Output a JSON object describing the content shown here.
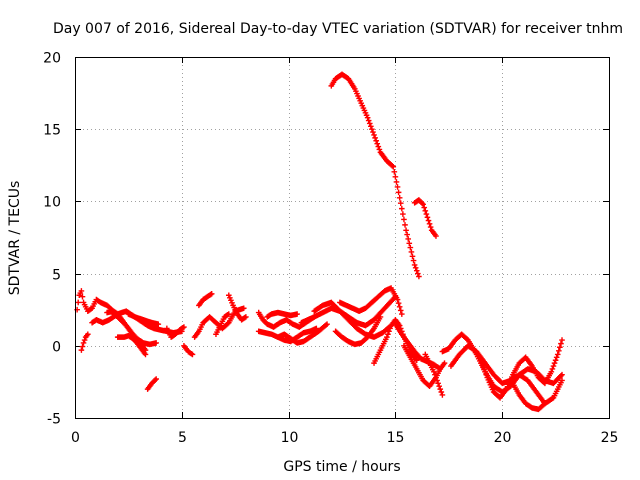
{
  "chart_data": {
    "type": "scatter",
    "title": "Day 007 of 2016, Sidereal Day-to-day VTEC variation (SDTVAR) for receiver tnhm",
    "xlabel": "GPS time / hours",
    "ylabel": "SDTVAR / TECUs",
    "xlim": [
      0,
      25
    ],
    "ylim": [
      -5,
      20
    ],
    "xticks": [
      0,
      5,
      10,
      15,
      20,
      25
    ],
    "yticks": [
      -5,
      0,
      5,
      10,
      15,
      20
    ],
    "grid": true,
    "marker": "+",
    "color": "#ff0000",
    "series": [
      {
        "name": "s1",
        "x": [
          0.1,
          0.2,
          0.3,
          0.4,
          0.6,
          0.8,
          1.0,
          1.2,
          1.5,
          1.8
        ],
        "y": [
          2.5,
          3.5,
          3.8,
          3.0,
          2.4,
          2.6,
          3.2,
          3.0,
          2.8,
          2.4
        ]
      },
      {
        "name": "s2",
        "x": [
          0.3,
          0.4,
          0.5,
          0.6
        ],
        "y": [
          -0.3,
          0.2,
          0.6,
          0.8
        ]
      },
      {
        "name": "s3",
        "x": [
          0.8,
          1.0,
          1.3,
          1.6,
          2.0,
          2.4,
          2.8,
          3.2,
          3.6,
          3.9
        ],
        "y": [
          1.6,
          1.8,
          1.6,
          1.8,
          2.2,
          2.4,
          2.0,
          1.8,
          1.6,
          1.5
        ]
      },
      {
        "name": "s4",
        "x": [
          1.5,
          1.8,
          2.0,
          2.3,
          2.6,
          2.9,
          3.2,
          3.5,
          3.8
        ],
        "y": [
          2.3,
          2.4,
          2.2,
          1.6,
          1.0,
          0.5,
          0.2,
          0.1,
          0.2
        ]
      },
      {
        "name": "s5",
        "x": [
          1.8,
          2.0,
          2.2,
          2.4,
          2.6,
          2.8,
          3.1,
          3.3
        ],
        "y": [
          2.2,
          2.0,
          1.7,
          1.4,
          1.0,
          0.6,
          0.1,
          -0.3
        ]
      },
      {
        "name": "s6",
        "x": [
          2.0,
          2.3,
          2.5,
          2.7,
          2.9,
          3.1,
          3.3
        ],
        "y": [
          0.6,
          0.6,
          0.7,
          0.5,
          0.2,
          -0.2,
          -0.6
        ]
      },
      {
        "name": "s7",
        "x": [
          2.5,
          2.8,
          3.1,
          3.4,
          3.7,
          4.0,
          4.3,
          4.6,
          5.0
        ],
        "y": [
          2.2,
          2.0,
          1.7,
          1.4,
          1.2,
          1.1,
          1.0,
          0.9,
          1.0
        ]
      },
      {
        "name": "s8",
        "x": [
          3.4,
          3.6,
          3.8
        ],
        "y": [
          -3.0,
          -2.6,
          -2.3
        ]
      },
      {
        "name": "s9",
        "x": [
          4.3,
          4.5,
          4.7,
          4.9,
          5.1
        ],
        "y": [
          1.2,
          0.6,
          0.8,
          1.1,
          1.3
        ]
      },
      {
        "name": "s10",
        "x": [
          5.1,
          5.3,
          5.5
        ],
        "y": [
          0.0,
          -0.4,
          -0.6
        ]
      },
      {
        "name": "s11",
        "x": [
          5.6,
          5.8,
          6.0,
          6.3,
          6.6,
          6.9,
          7.2,
          7.5,
          7.9
        ],
        "y": [
          0.6,
          1.0,
          1.6,
          2.0,
          1.6,
          1.2,
          1.6,
          2.4,
          2.6
        ]
      },
      {
        "name": "s12",
        "x": [
          5.8,
          6.0,
          6.2,
          6.4
        ],
        "y": [
          2.8,
          3.2,
          3.4,
          3.6
        ]
      },
      {
        "name": "s13",
        "x": [
          6.6,
          6.8,
          7.0,
          7.2
        ],
        "y": [
          0.8,
          1.4,
          2.0,
          2.2
        ]
      },
      {
        "name": "s14",
        "x": [
          7.2,
          7.4,
          7.6,
          7.8,
          8.0
        ],
        "y": [
          3.5,
          2.8,
          2.2,
          1.8,
          2.0
        ]
      },
      {
        "name": "s15",
        "x": [
          8.6,
          8.8,
          9.0,
          9.3,
          9.6,
          9.9,
          10.2,
          10.5,
          10.8,
          11.2
        ],
        "y": [
          2.3,
          1.8,
          1.5,
          1.3,
          1.6,
          1.8,
          1.5,
          1.3,
          1.6,
          2.0
        ]
      },
      {
        "name": "s16",
        "x": [
          8.6,
          8.9,
          9.2,
          9.5,
          9.8,
          10.1,
          10.4,
          10.7,
          11.0,
          11.3
        ],
        "y": [
          1.0,
          0.9,
          0.8,
          0.6,
          0.4,
          0.3,
          0.6,
          0.9,
          1.0,
          1.2
        ]
      },
      {
        "name": "s17",
        "x": [
          9.0,
          9.2,
          9.5,
          9.8,
          10.1,
          10.4
        ],
        "y": [
          2.0,
          2.2,
          2.3,
          2.2,
          2.1,
          2.2
        ]
      },
      {
        "name": "s18",
        "x": [
          9.5,
          9.8,
          10.1,
          10.4,
          10.7,
          11.0,
          11.4,
          11.8
        ],
        "y": [
          0.6,
          0.8,
          0.5,
          0.2,
          0.3,
          0.6,
          1.0,
          1.5
        ]
      },
      {
        "name": "s19",
        "x": [
          10.6,
          10.9,
          11.2,
          11.6,
          12.0,
          12.4,
          12.8,
          13.2,
          13.6,
          14.0,
          14.5,
          15.0
        ],
        "y": [
          1.6,
          1.8,
          2.0,
          2.3,
          2.6,
          2.4,
          2.0,
          1.6,
          1.4,
          1.8,
          2.6,
          3.4
        ]
      },
      {
        "name": "s20",
        "x": [
          11.2,
          11.6,
          12.0,
          12.4,
          12.8,
          13.2,
          13.6,
          14.0,
          14.4,
          14.8
        ],
        "y": [
          2.4,
          2.8,
          3.0,
          2.4,
          1.8,
          1.2,
          0.8,
          0.6,
          0.9,
          1.4
        ]
      },
      {
        "name": "s21",
        "x": [
          12.2,
          12.5,
          12.8,
          13.1,
          13.4,
          13.7,
          14.0,
          14.3
        ],
        "y": [
          1.0,
          0.6,
          0.3,
          0.1,
          0.2,
          0.6,
          1.2,
          2.0
        ]
      },
      {
        "name": "s22",
        "x": [
          12.4,
          12.7,
          13.0,
          13.3,
          13.6,
          13.9,
          14.2,
          14.5,
          14.8,
          15.1,
          15.3
        ],
        "y": [
          3.0,
          2.8,
          2.6,
          2.4,
          2.6,
          3.0,
          3.4,
          3.8,
          4.0,
          3.2,
          2.2
        ]
      },
      {
        "name": "s23",
        "x": [
          14.0,
          14.2,
          14.4,
          14.6,
          14.8,
          15.0,
          15.2,
          15.4,
          15.6,
          15.8,
          16.0
        ],
        "y": [
          -1.2,
          -0.6,
          0.0,
          0.6,
          1.4,
          1.8,
          1.4,
          0.6,
          0.0,
          -0.6,
          -1.0
        ]
      },
      {
        "name": "s24",
        "x": [
          12.0,
          12.2,
          12.5,
          12.8,
          13.1,
          13.4,
          13.7,
          14.0,
          14.3,
          14.6,
          14.9,
          15.1,
          15.3,
          15.5,
          15.7,
          15.9,
          16.1
        ],
        "y": [
          18.0,
          18.5,
          18.8,
          18.5,
          17.8,
          16.8,
          15.8,
          14.6,
          13.4,
          12.8,
          12.4,
          11.0,
          9.5,
          8.0,
          6.8,
          5.6,
          4.8
        ]
      },
      {
        "name": "s25",
        "x": [
          15.9,
          16.1,
          16.3,
          16.5,
          16.7,
          16.9
        ],
        "y": [
          9.9,
          10.1,
          9.8,
          8.9,
          8.0,
          7.6
        ]
      },
      {
        "name": "s26",
        "x": [
          15.0,
          15.3,
          15.6,
          15.9,
          16.2,
          16.5,
          16.8,
          17.1
        ],
        "y": [
          1.5,
          0.8,
          0.2,
          -0.4,
          -0.9,
          -1.1,
          -1.3,
          -1.6
        ]
      },
      {
        "name": "s27",
        "x": [
          15.4,
          15.7,
          16.0,
          16.3,
          16.6,
          16.9,
          17.1,
          17.3
        ],
        "y": [
          0.0,
          -0.8,
          -1.6,
          -2.4,
          -2.8,
          -2.2,
          -1.6,
          -1.2
        ]
      },
      {
        "name": "s28",
        "x": [
          16.4,
          16.6,
          16.8,
          17.0,
          17.2
        ],
        "y": [
          -0.6,
          -1.2,
          -1.8,
          -2.6,
          -3.4
        ]
      },
      {
        "name": "s29",
        "x": [
          17.2,
          17.5,
          17.8,
          18.1,
          18.4,
          18.8,
          19.2,
          19.6,
          20.0,
          20.4,
          20.8,
          21.2,
          21.6,
          22.0,
          22.4,
          22.8
        ],
        "y": [
          -0.4,
          -0.2,
          0.4,
          0.8,
          0.4,
          -0.6,
          -1.8,
          -2.8,
          -3.2,
          -2.8,
          -2.0,
          -1.6,
          -1.8,
          -2.4,
          -2.6,
          -2.0
        ]
      },
      {
        "name": "s30",
        "x": [
          17.6,
          18.0,
          18.4,
          18.8,
          19.2,
          19.6,
          20.0,
          20.4,
          20.8,
          21.2,
          21.6,
          22.0,
          22.4,
          22.8
        ],
        "y": [
          -1.4,
          -0.6,
          0.0,
          -0.4,
          -1.2,
          -2.0,
          -2.6,
          -2.4,
          -2.0,
          -2.4,
          -3.2,
          -4.0,
          -3.6,
          -2.4
        ]
      },
      {
        "name": "s31",
        "x": [
          19.0,
          19.3,
          19.6,
          19.9,
          20.2,
          20.5,
          20.8,
          21.1,
          21.4,
          21.7,
          22.0,
          22.3,
          22.6,
          22.8
        ],
        "y": [
          -1.0,
          -2.2,
          -3.2,
          -3.6,
          -3.0,
          -2.0,
          -1.2,
          -0.8,
          -1.4,
          -2.2,
          -2.6,
          -1.8,
          -0.6,
          0.4
        ]
      },
      {
        "name": "s32",
        "x": [
          20.5,
          20.8,
          21.1,
          21.4,
          21.7,
          22.0
        ],
        "y": [
          -2.6,
          -3.4,
          -4.0,
          -4.3,
          -4.4,
          -4.0
        ]
      }
    ]
  }
}
